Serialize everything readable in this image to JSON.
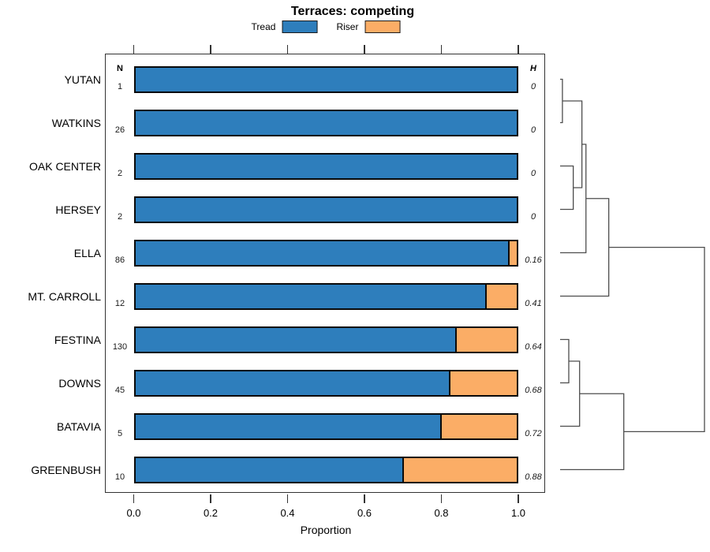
{
  "chart_data": {
    "type": "bar",
    "subtype": "horizontal stacked proportion bars with right-side cluster dendrogram",
    "title": "Terraces: competing",
    "xlabel": "Proportion",
    "xlim": [
      0,
      1
    ],
    "xtick_values": [
      0,
      0.2,
      0.4,
      0.6,
      0.8,
      1.0
    ],
    "xtick_labels": [
      "0.0",
      "0.2",
      "0.4",
      "0.6",
      "0.8",
      "1.0"
    ],
    "grid": "off",
    "legend_position": "top",
    "categories": [
      "YUTAN",
      "WATKINS",
      "OAK CENTER",
      "HERSEY",
      "ELLA",
      "MT. CARROLL",
      "FESTINA",
      "DOWNS",
      "BATAVIA",
      "GREENBUSH"
    ],
    "n_header": "N",
    "h_header": "H",
    "n_values": [
      1,
      26,
      2,
      2,
      86,
      12,
      130,
      45,
      5,
      10
    ],
    "h_values": [
      "0",
      "0",
      "0",
      "0",
      "0.16",
      "0.41",
      "0.64",
      "0.68",
      "0.72",
      "0.88"
    ],
    "series": [
      {
        "name": "Tread",
        "color": "#2e7ebc",
        "values": [
          1,
          1,
          1,
          1,
          0.977,
          0.917,
          0.838,
          0.822,
          0.8,
          0.7
        ]
      },
      {
        "name": "Riser",
        "color": "#fbad66",
        "values": [
          0,
          0,
          0,
          0,
          0.023,
          0.083,
          0.162,
          0.178,
          0.2,
          0.3
        ]
      }
    ],
    "dendrogram": {
      "orientation": "right",
      "leaf_order": [
        "YUTAN",
        "WATKINS",
        "OAK CENTER",
        "HERSEY",
        "ELLA",
        "MT. CARROLL",
        "FESTINA",
        "DOWNS",
        "BATAVIA",
        "GREENBUSH"
      ],
      "merges": [
        {
          "a": "L0",
          "b": "L1",
          "h": 0.016
        },
        {
          "a": "L2",
          "b": "L3",
          "h": 0.091
        },
        {
          "a": "M0",
          "b": "M1",
          "h": 0.151
        },
        {
          "a": "M2",
          "b": "L4",
          "h": 0.179
        },
        {
          "a": "M3",
          "b": "L5",
          "h": 0.337
        },
        {
          "a": "L6",
          "b": "L7",
          "h": 0.06
        },
        {
          "a": "M5",
          "b": "L8",
          "h": 0.135
        },
        {
          "a": "M6",
          "b": "L9",
          "h": 0.441
        },
        {
          "a": "M4",
          "b": "M7",
          "h": 1.0
        }
      ]
    },
    "colors": {
      "tread": "#2e7ebc",
      "riser": "#fbad66",
      "bar_border": "#0a0a0a",
      "dendrogram_line": "#4d4d4d",
      "axis": "#333333"
    }
  }
}
